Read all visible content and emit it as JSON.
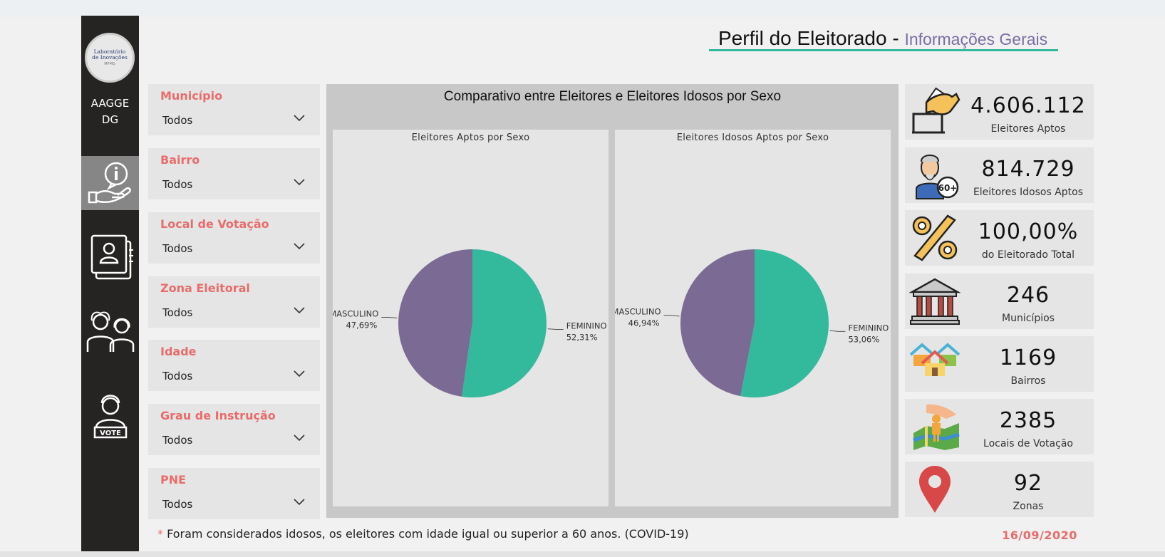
{
  "sidebar": {
    "logo_lines": [
      "Laboratório",
      "de Inovações"
    ],
    "logo_sub": "MPMG",
    "org_lines": [
      "AAGGE",
      "DG"
    ],
    "nav": [
      {
        "name": "nav-info-icon",
        "active": true
      },
      {
        "name": "nav-profile-doc-icon",
        "active": false
      },
      {
        "name": "nav-elderly-couple-icon",
        "active": false
      },
      {
        "name": "nav-voter-icon",
        "active": false
      }
    ]
  },
  "header": {
    "title": "Perfil do Eleitorado - ",
    "subtitle": "Informações Gerais"
  },
  "filters": [
    {
      "label": "Município",
      "value": "Todos"
    },
    {
      "label": "Bairro",
      "value": "Todos"
    },
    {
      "label": "Local de Votação",
      "value": "Todos"
    },
    {
      "label": "Zona Eleitoral",
      "value": "Todos"
    },
    {
      "label": "Idade",
      "value": "Todos"
    },
    {
      "label": "Grau de Instrução",
      "value": "Todos"
    },
    {
      "label": "PNE",
      "value": "Todos"
    }
  ],
  "chart_panel": {
    "title": "Comparativo entre Eleitores e Eleitores Idosos por Sexo"
  },
  "colors": {
    "feminino": "#33b99c",
    "masculino": "#7b6a93",
    "accent_red": "#ea6c6c",
    "header_line": "#34b89c"
  },
  "chart_data": [
    {
      "type": "pie",
      "title": "Eleitores Aptos por Sexo",
      "slices": [
        {
          "label": "FEMININO",
          "value": 52.31,
          "display": "52,31%"
        },
        {
          "label": "MASCULINO",
          "value": 47.69,
          "display": "47,69%"
        }
      ]
    },
    {
      "type": "pie",
      "title": "Eleitores Idosos Aptos por Sexo",
      "slices": [
        {
          "label": "FEMININO",
          "value": 53.06,
          "display": "53,06%"
        },
        {
          "label": "MASCULINO",
          "value": 46.94,
          "display": "46,94%"
        }
      ]
    }
  ],
  "kpis": [
    {
      "value": "4.606.112",
      "label": "Eleitores Aptos",
      "icon": "ballot-hand-icon"
    },
    {
      "value": "814.729",
      "label": "Eleitores Idosos Aptos",
      "icon": "elderly-60plus-icon"
    },
    {
      "value": "100,00%",
      "label": "do Eleitorado Total",
      "icon": "percent-icon"
    },
    {
      "value": "246",
      "label": "Municípios",
      "icon": "institution-building-icon"
    },
    {
      "value": "1169",
      "label": "Bairros",
      "icon": "houses-icon"
    },
    {
      "value": "2385",
      "label": "Locais de Votação",
      "icon": "map-location-icon"
    },
    {
      "value": "92",
      "label": "Zonas",
      "icon": "map-pin-icon"
    }
  ],
  "footer": {
    "star": "*",
    "note": " Foram considerados idosos, os eleitores com idade igual ou superior a 60 anos. (COVID-19)",
    "date": "16/09/2020"
  }
}
